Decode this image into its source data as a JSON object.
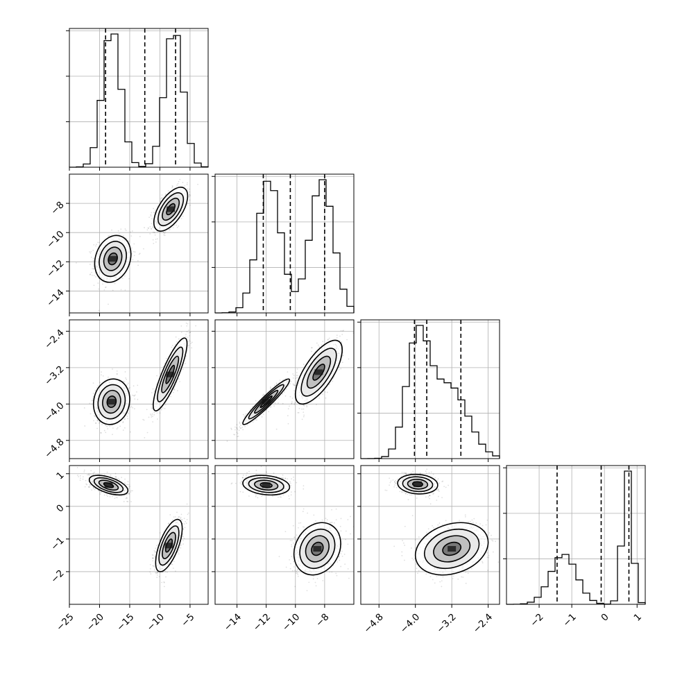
{
  "chart_data": {
    "type": "corner",
    "parameters": [
      {
        "range": [
          -25,
          -2
        ],
        "ticks": [
          -25,
          -20,
          -15,
          -10,
          -5
        ],
        "tick_labels": [
          "−25",
          "−20",
          "−15",
          "−10",
          "−5"
        ],
        "modes": [
          {
            "mean": -18.0,
            "sd": 1.5,
            "weight": 0.5
          },
          {
            "mean": -7.7,
            "sd": 1.5,
            "weight": 0.5
          }
        ],
        "quantiles": [
          -19.0,
          -12.5,
          -7.4
        ]
      },
      {
        "range": [
          -15.5,
          -6
        ],
        "ticks": [
          -14,
          -12,
          -10,
          -8
        ],
        "tick_labels": [
          "−14",
          "−12",
          "−10",
          "−8"
        ],
        "modes": [
          {
            "mean": -11.8,
            "sd": 0.8,
            "weight": 0.5
          },
          {
            "mean": -8.2,
            "sd": 0.8,
            "weight": 0.5
          }
        ],
        "quantiles": [
          -12.2,
          -10.35,
          -8.0
        ]
      },
      {
        "range": [
          -5.2,
          -2.15
        ],
        "ticks": [
          -4.8,
          -4.0,
          -3.2,
          -2.4
        ],
        "tick_labels": [
          "−4.8",
          "−4.0",
          "−3.2",
          "−2.4"
        ],
        "modes": [
          {
            "mean": -3.95,
            "sd": 0.25,
            "weight": 0.5
          },
          {
            "mean": -3.25,
            "sd": 0.4,
            "weight": 0.5
          }
        ],
        "quantiles": [
          -4.02,
          -3.75,
          -3.0
        ]
      },
      {
        "range": [
          -3.0,
          1.25
        ],
        "ticks": [
          -2,
          -1,
          0,
          1
        ],
        "tick_labels": [
          "−2",
          "−1",
          "0",
          "1"
        ],
        "modes": [
          {
            "mean": -1.25,
            "sd": 0.4,
            "weight": 0.5
          },
          {
            "mean": 0.7,
            "sd": 0.15,
            "weight": 0.5
          }
        ],
        "quantiles": [
          -1.45,
          -0.1,
          0.75
        ]
      }
    ],
    "pairs": [
      {
        "row": 1,
        "col": 0,
        "clusters": [
          {
            "mean": [
              -17.8,
              -11.8
            ],
            "sd": [
              1.5,
              0.8
            ],
            "rho": 0.2
          },
          {
            "mean": [
              -8.2,
              -8.4
            ],
            "sd": [
              1.4,
              0.75
            ],
            "rho": 0.6
          }
        ]
      },
      {
        "row": 2,
        "col": 0,
        "clusters": [
          {
            "mean": [
              -18.0,
              -3.95
            ],
            "sd": [
              1.5,
              0.25
            ],
            "rho": 0.1
          },
          {
            "mean": [
              -8.3,
              -3.35
            ],
            "sd": [
              1.4,
              0.4
            ],
            "rho": 0.85
          }
        ]
      },
      {
        "row": 2,
        "col": 1,
        "clusters": [
          {
            "mean": [
              -12.0,
              -3.95
            ],
            "sd": [
              0.8,
              0.25
            ],
            "rho": 0.95
          },
          {
            "mean": [
              -8.4,
              -3.3
            ],
            "sd": [
              0.8,
              0.35
            ],
            "rho": 0.7
          }
        ]
      },
      {
        "row": 3,
        "col": 0,
        "clusters": [
          {
            "mean": [
              -18.5,
              0.65
            ],
            "sd": [
              1.6,
              0.15
            ],
            "rho": -0.55
          },
          {
            "mean": [
              -8.5,
              -1.2
            ],
            "sd": [
              1.1,
              0.4
            ],
            "rho": 0.65
          }
        ]
      },
      {
        "row": 3,
        "col": 1,
        "clusters": [
          {
            "mean": [
              -12.0,
              0.65
            ],
            "sd": [
              0.8,
              0.15
            ],
            "rho": -0.2
          },
          {
            "mean": [
              -8.5,
              -1.3
            ],
            "sd": [
              0.8,
              0.4
            ],
            "rho": 0.2
          }
        ]
      },
      {
        "row": 3,
        "col": 2,
        "clusters": [
          {
            "mean": [
              -3.95,
              0.68
            ],
            "sd": [
              0.22,
              0.15
            ],
            "rho": -0.1
          },
          {
            "mean": [
              -3.2,
              -1.3
            ],
            "sd": [
              0.4,
              0.4
            ],
            "rho": 0.25
          }
        ]
      }
    ],
    "grid": true,
    "legend": "none"
  }
}
